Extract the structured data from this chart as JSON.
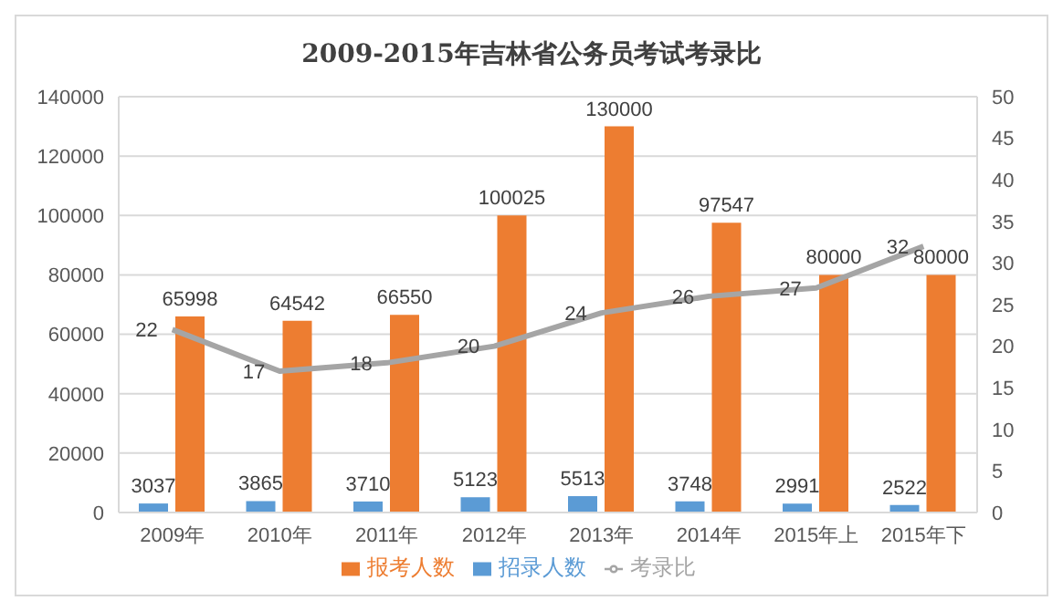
{
  "chart_data": {
    "type": "bar",
    "title": "2009-2015年吉林省公务员考试考录比",
    "categories": [
      "2009年",
      "2010年",
      "2011年",
      "2012年",
      "2013年",
      "2014年",
      "2015年上",
      "2015年下"
    ],
    "series": [
      {
        "name": "招录人数",
        "color": "#5b9bd5",
        "values": [
          3037,
          3865,
          3710,
          5123,
          5513,
          3748,
          2991,
          2522
        ]
      },
      {
        "name": "报考人数",
        "color": "#ed7d31",
        "values": [
          65998,
          64542,
          66550,
          100025,
          130000,
          97547,
          80000,
          80000
        ]
      },
      {
        "name": "考录比",
        "type": "line",
        "axis": "y2",
        "color": "#a5a5a5",
        "marker": "none",
        "values": [
          22,
          17,
          18,
          20,
          24,
          26,
          27,
          32
        ]
      }
    ],
    "ylim": [
      0,
      140000
    ],
    "yticks": [
      0,
      20000,
      40000,
      60000,
      80000,
      100000,
      120000,
      140000
    ],
    "y2lim": [
      0,
      50
    ],
    "y2ticks": [
      0,
      5,
      10,
      15,
      20,
      25,
      30,
      35,
      40,
      45,
      50
    ],
    "grid": "y",
    "legend": "bottom",
    "data_labels": true
  }
}
